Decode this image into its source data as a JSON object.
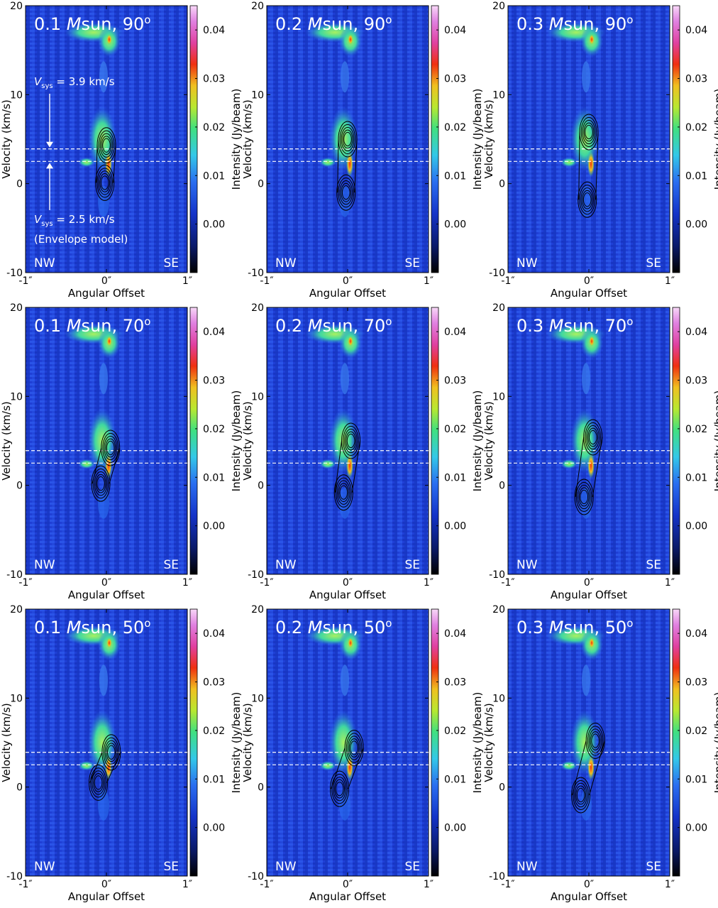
{
  "figure": {
    "xlabel": "Angular Offset",
    "ylabel": "Velocity (km/s)",
    "colorbar_label": "Intensity (Jy/beam)",
    "corner_left": "NW",
    "corner_right": "SE",
    "annot_top": "= 3.9 km/s",
    "annot_bottom": "= 2.5 km/s",
    "annot_model": "(Envelope model)",
    "annot_v": "V",
    "annot_sub": "sys",
    "colors": {
      "dashed_line": "#ffffff",
      "contour": "#000000",
      "title_text": "#ffffff"
    }
  },
  "chart_data": [
    {
      "type": "heatmap",
      "mass": "0.1",
      "mass_unit": "Msun",
      "inclination": "90",
      "degree": "o",
      "xlabel": "Angular Offset",
      "ylabel": "Velocity (km/s)",
      "xticks": [
        "-1″",
        "0″",
        "1″"
      ],
      "yticks": [
        "-10",
        "0",
        "10",
        "20"
      ],
      "xlim": [
        -1,
        1
      ],
      "ylim": [
        -10,
        20
      ],
      "colorbar": {
        "label": "Intensity (Jy/beam)",
        "ticks": [
          "0.00",
          "0.01",
          "0.02",
          "0.03",
          "0.04"
        ],
        "range": [
          -0.01,
          0.045
        ]
      },
      "vsys_lines": [
        3.9,
        2.5
      ],
      "model_peaks": [
        {
          "x": 0.0,
          "v": 4.3
        },
        {
          "x": -0.02,
          "v": 0.1
        }
      ]
    },
    {
      "type": "heatmap",
      "mass": "0.2",
      "mass_unit": "Msun",
      "inclination": "90",
      "degree": "o",
      "xlabel": "Angular Offset",
      "ylabel": "Velocity (km/s)",
      "xticks": [
        "-1″",
        "0″",
        "1″"
      ],
      "yticks": [
        "-10",
        "0",
        "10",
        "20"
      ],
      "xlim": [
        -1,
        1
      ],
      "ylim": [
        -10,
        20
      ],
      "colorbar": {
        "label": "Intensity (Jy/beam)",
        "ticks": [
          "0.00",
          "0.01",
          "0.02",
          "0.03",
          "0.04"
        ],
        "range": [
          -0.01,
          0.045
        ]
      },
      "vsys_lines": [
        3.9,
        2.5
      ],
      "model_peaks": [
        {
          "x": 0.0,
          "v": 5.0
        },
        {
          "x": -0.02,
          "v": -1.0
        }
      ]
    },
    {
      "type": "heatmap",
      "mass": "0.3",
      "mass_unit": "Msun",
      "inclination": "90",
      "degree": "o",
      "xlabel": "Angular Offset",
      "ylabel": "Velocity (km/s)",
      "xticks": [
        "-1″",
        "0″",
        "1″"
      ],
      "yticks": [
        "-10",
        "0",
        "10",
        "20"
      ],
      "xlim": [
        -1,
        1
      ],
      "ylim": [
        -10,
        20
      ],
      "colorbar": {
        "label": "Intensity (Jy/beam)",
        "ticks": [
          "0.00",
          "0.01",
          "0.02",
          "0.03",
          "0.04"
        ],
        "range": [
          -0.01,
          0.045
        ]
      },
      "vsys_lines": [
        3.9,
        2.5
      ],
      "model_peaks": [
        {
          "x": 0.0,
          "v": 5.8
        },
        {
          "x": -0.02,
          "v": -1.8
        }
      ]
    },
    {
      "type": "heatmap",
      "mass": "0.1",
      "mass_unit": "Msun",
      "inclination": "70",
      "degree": "o",
      "xlabel": "Angular Offset",
      "ylabel": "Velocity (km/s)",
      "xticks": [
        "-1″",
        "0″",
        "1″"
      ],
      "yticks": [
        "-10",
        "0",
        "10",
        "20"
      ],
      "xlim": [
        -1,
        1
      ],
      "ylim": [
        -10,
        20
      ],
      "colorbar": {
        "label": "Intensity (Jy/beam)",
        "ticks": [
          "0.00",
          "0.01",
          "0.02",
          "0.03",
          "0.04"
        ],
        "range": [
          -0.01,
          0.045
        ]
      },
      "vsys_lines": [
        3.9,
        2.5
      ],
      "model_peaks": [
        {
          "x": 0.05,
          "v": 4.2
        },
        {
          "x": -0.07,
          "v": 0.2
        }
      ]
    },
    {
      "type": "heatmap",
      "mass": "0.2",
      "mass_unit": "Msun",
      "inclination": "70",
      "degree": "o",
      "xlabel": "Angular Offset",
      "ylabel": "Velocity (km/s)",
      "xticks": [
        "-1″",
        "0″",
        "1″"
      ],
      "yticks": [
        "-10",
        "0",
        "10",
        "20"
      ],
      "xlim": [
        -1,
        1
      ],
      "ylim": [
        -10,
        20
      ],
      "colorbar": {
        "label": "Intensity (Jy/beam)",
        "ticks": [
          "0.00",
          "0.01",
          "0.02",
          "0.03",
          "0.04"
        ],
        "range": [
          -0.01,
          0.045
        ]
      },
      "vsys_lines": [
        3.9,
        2.5
      ],
      "model_peaks": [
        {
          "x": 0.04,
          "v": 5.0
        },
        {
          "x": -0.05,
          "v": -0.8
        }
      ]
    },
    {
      "type": "heatmap",
      "mass": "0.3",
      "mass_unit": "Msun",
      "inclination": "70",
      "degree": "o",
      "xlabel": "Angular Offset",
      "ylabel": "Velocity (km/s)",
      "xticks": [
        "-1″",
        "0″",
        "1″"
      ],
      "yticks": [
        "-10",
        "0",
        "10",
        "20"
      ],
      "xlim": [
        -1,
        1
      ],
      "ylim": [
        -10,
        20
      ],
      "colorbar": {
        "label": "Intensity (Jy/beam)",
        "ticks": [
          "0.00",
          "0.01",
          "0.02",
          "0.03",
          "0.04"
        ],
        "range": [
          -0.01,
          0.045
        ]
      },
      "vsys_lines": [
        3.9,
        2.5
      ],
      "model_peaks": [
        {
          "x": 0.05,
          "v": 5.4
        },
        {
          "x": -0.06,
          "v": -1.3
        }
      ]
    },
    {
      "type": "heatmap",
      "mass": "0.1",
      "mass_unit": "Msun",
      "inclination": "50",
      "degree": "o",
      "xlabel": "Angular Offset",
      "ylabel": "Velocity (km/s)",
      "xticks": [
        "-1″",
        "0″",
        "1″"
      ],
      "yticks": [
        "-10",
        "0",
        "10",
        "20"
      ],
      "xlim": [
        -1,
        1
      ],
      "ylim": [
        -10,
        20
      ],
      "colorbar": {
        "label": "Intensity (Jy/beam)",
        "ticks": [
          "0.00",
          "0.01",
          "0.02",
          "0.03",
          "0.04"
        ],
        "range": [
          -0.01,
          0.045
        ]
      },
      "vsys_lines": [
        3.9,
        2.5
      ],
      "model_peaks": [
        {
          "x": 0.06,
          "v": 3.9
        },
        {
          "x": -0.1,
          "v": 0.5
        }
      ]
    },
    {
      "type": "heatmap",
      "mass": "0.2",
      "mass_unit": "Msun",
      "inclination": "50",
      "degree": "o",
      "xlabel": "Angular Offset",
      "ylabel": "Velocity (km/s)",
      "xticks": [
        "-1″",
        "0″",
        "1″"
      ],
      "yticks": [
        "-10",
        "0",
        "10",
        "20"
      ],
      "xlim": [
        -1,
        1
      ],
      "ylim": [
        -10,
        20
      ],
      "colorbar": {
        "label": "Intensity (Jy/beam)",
        "ticks": [
          "0.00",
          "0.01",
          "0.02",
          "0.03",
          "0.04"
        ],
        "range": [
          -0.01,
          0.045
        ]
      },
      "vsys_lines": [
        3.9,
        2.5
      ],
      "model_peaks": [
        {
          "x": 0.08,
          "v": 4.4
        },
        {
          "x": -0.1,
          "v": -0.2
        }
      ]
    },
    {
      "type": "heatmap",
      "mass": "0.3",
      "mass_unit": "Msun",
      "inclination": "50",
      "degree": "o",
      "xlabel": "Angular Offset",
      "ylabel": "Velocity (km/s)",
      "xticks": [
        "-1″",
        "0″",
        "1″"
      ],
      "yticks": [
        "-10",
        "0",
        "10",
        "20"
      ],
      "xlim": [
        -1,
        1
      ],
      "ylim": [
        -10,
        20
      ],
      "colorbar": {
        "label": "Intensity (Jy/beam)",
        "ticks": [
          "0.00",
          "0.01",
          "0.02",
          "0.03",
          "0.04"
        ],
        "range": [
          -0.01,
          0.045
        ]
      },
      "vsys_lines": [
        3.9,
        2.5
      ],
      "model_peaks": [
        {
          "x": 0.08,
          "v": 5.2
        },
        {
          "x": -0.1,
          "v": -0.9
        }
      ]
    }
  ]
}
